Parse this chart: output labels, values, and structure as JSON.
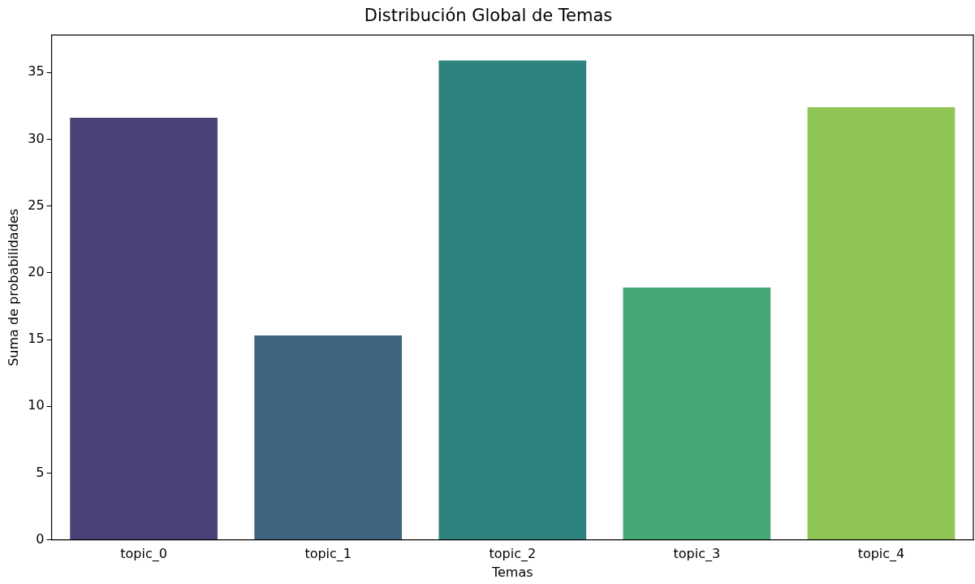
{
  "chart_data": {
    "type": "bar",
    "title": "Distribución Global de Temas",
    "xlabel": "Temas",
    "ylabel": "Suma de probabilidades",
    "categories": [
      "topic_0",
      "topic_1",
      "topic_2",
      "topic_3",
      "topic_4"
    ],
    "values": [
      31.6,
      15.3,
      35.9,
      18.9,
      32.4
    ],
    "colors": [
      "#4a4176",
      "#3e6480",
      "#2e837e",
      "#46a776",
      "#8fc457"
    ],
    "ylim": [
      0,
      37.8
    ],
    "yticks": [
      0,
      5,
      10,
      15,
      20,
      25,
      30,
      35
    ],
    "grid": false,
    "legend": false
  }
}
